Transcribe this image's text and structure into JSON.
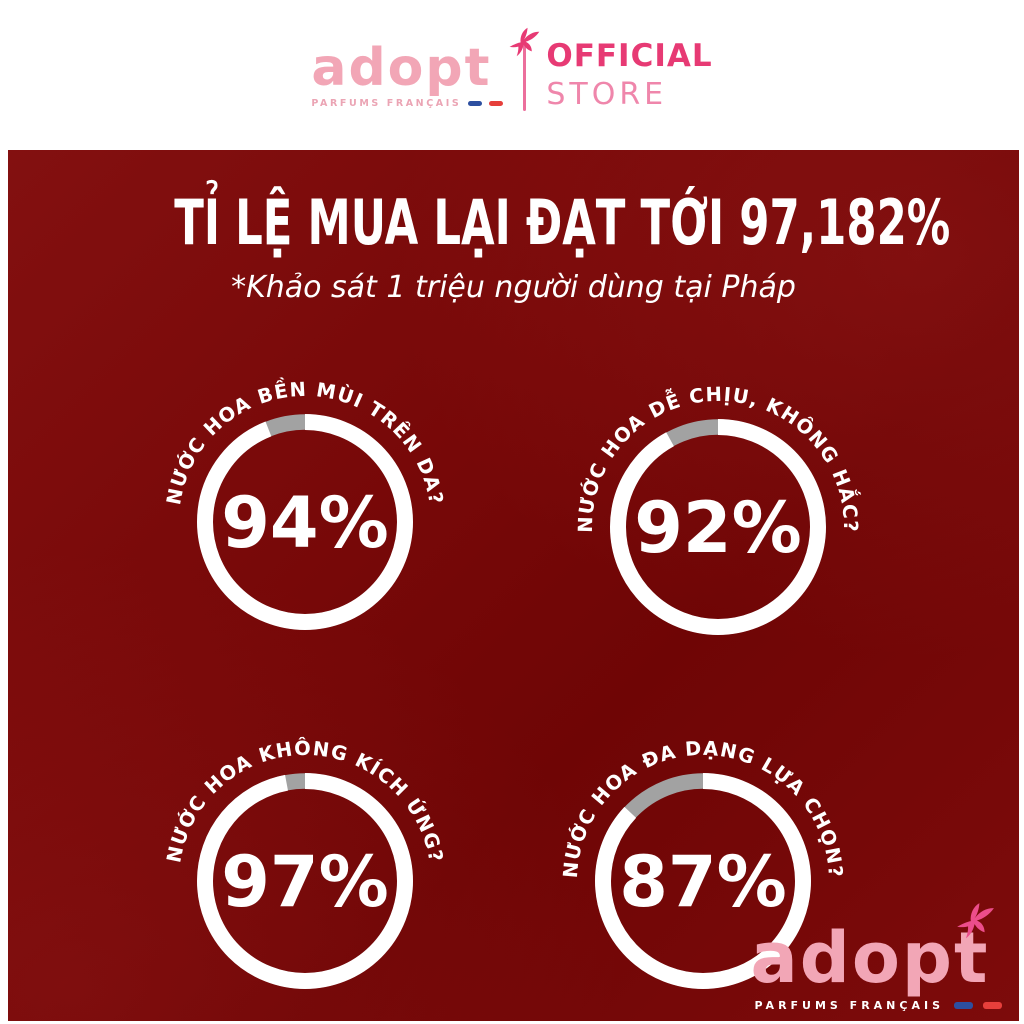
{
  "brand": {
    "name": "adopt",
    "tagline": "PARFUMS FRANÇAIS",
    "store_line1": "OFFICIAL",
    "store_line2": "STORE"
  },
  "banner": {
    "title": "TỈ LỆ MUA LẠI ĐẠT TỚI 97,182%",
    "subtitle": "*Khảo sát 1 triệu người dùng tại Pháp"
  },
  "footer": {
    "name": "adopt",
    "tagline": "PARFUMS FRANÇAIS"
  },
  "colors": {
    "background_red": "#770808",
    "ring_white": "#ffffff",
    "ring_remainder_gray": "#a2a2a2",
    "logo_pink": "#f2a6b6",
    "accent_magenta": "#e73a74",
    "store_pink": "#ef86ab",
    "flag_blue": "#2d4fa0",
    "flag_red": "#e63f3b",
    "text_white": "#ffffff"
  },
  "chart_data": {
    "type": "pie",
    "variant": "donut-gauge",
    "title": "TỈ LỆ MUA LẠI ĐẠT TỚI 97,182%",
    "subtitle": "*Khảo sát 1 triệu người dùng tại Pháp",
    "legend_position": "none",
    "value_range": [
      0,
      100
    ],
    "start_angle_deg": 0,
    "direction": "clockwise",
    "charts": [
      {
        "label": "NƯỚC HOA BỀN MÙI TRÊN DA?",
        "value": 94,
        "display": "94%",
        "remainder": 6
      },
      {
        "label": "NƯỚC HOA DỄ CHỊU, KHÔNG HẮC?",
        "value": 92,
        "display": "92%",
        "remainder": 8
      },
      {
        "label": "NƯỚC HOA KHÔNG KÍCH ỨNG?",
        "value": 97,
        "display": "97%",
        "remainder": 3
      },
      {
        "label": "NƯỚC HOA ĐA DẠNG LỰA CHỌN?",
        "value": 87,
        "display": "87%",
        "remainder": 13
      }
    ]
  }
}
